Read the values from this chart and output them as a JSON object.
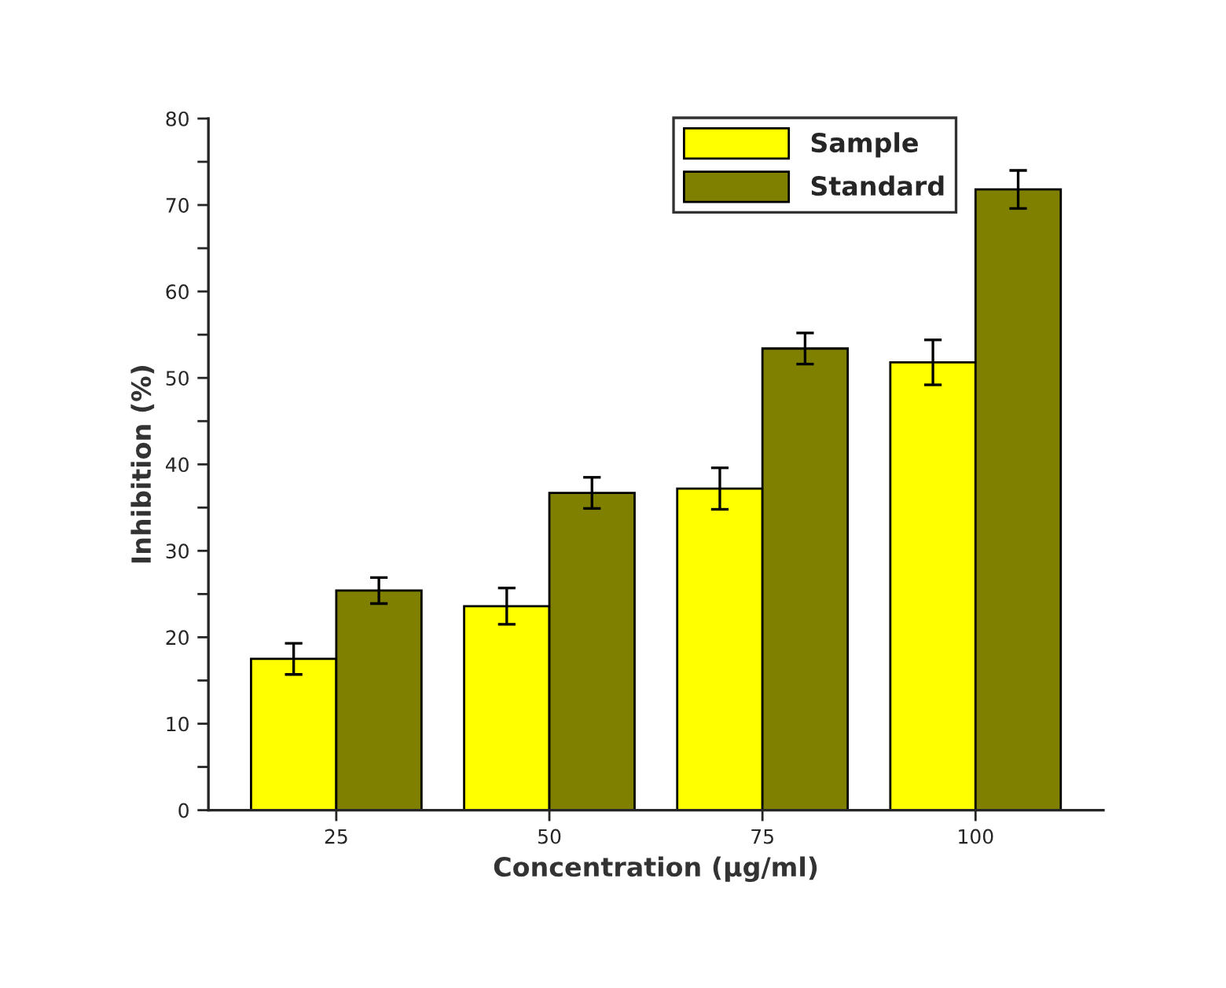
{
  "chart_data": {
    "type": "bar",
    "xlabel": "Concentration (µg/ml)",
    "ylabel": "Inhibition (%)",
    "categories": [
      "25",
      "50",
      "75",
      "100"
    ],
    "series": [
      {
        "name": "Sample",
        "color": "#ffff00",
        "values": [
          17.5,
          23.6,
          37.2,
          51.8
        ],
        "errors": [
          1.8,
          2.1,
          2.4,
          2.6
        ]
      },
      {
        "name": "Standard",
        "color": "#808000",
        "values": [
          25.4,
          36.7,
          53.4,
          71.8
        ],
        "errors": [
          1.5,
          1.8,
          1.8,
          2.2
        ]
      }
    ],
    "ylim": [
      0,
      80
    ],
    "yticks": [
      0,
      {
        "value": 5,
        "label": null
      },
      10,
      {
        "value": 15,
        "label": null
      },
      20,
      {
        "value": 25,
        "label": null
      },
      30,
      {
        "value": 35,
        "label": null
      },
      40,
      {
        "value": 45,
        "label": null
      },
      50,
      {
        "value": 55,
        "label": null
      },
      60,
      {
        "value": 65,
        "label": null
      },
      70,
      {
        "value": 75,
        "label": null
      },
      80
    ],
    "legend": "top right",
    "grid": false
  }
}
